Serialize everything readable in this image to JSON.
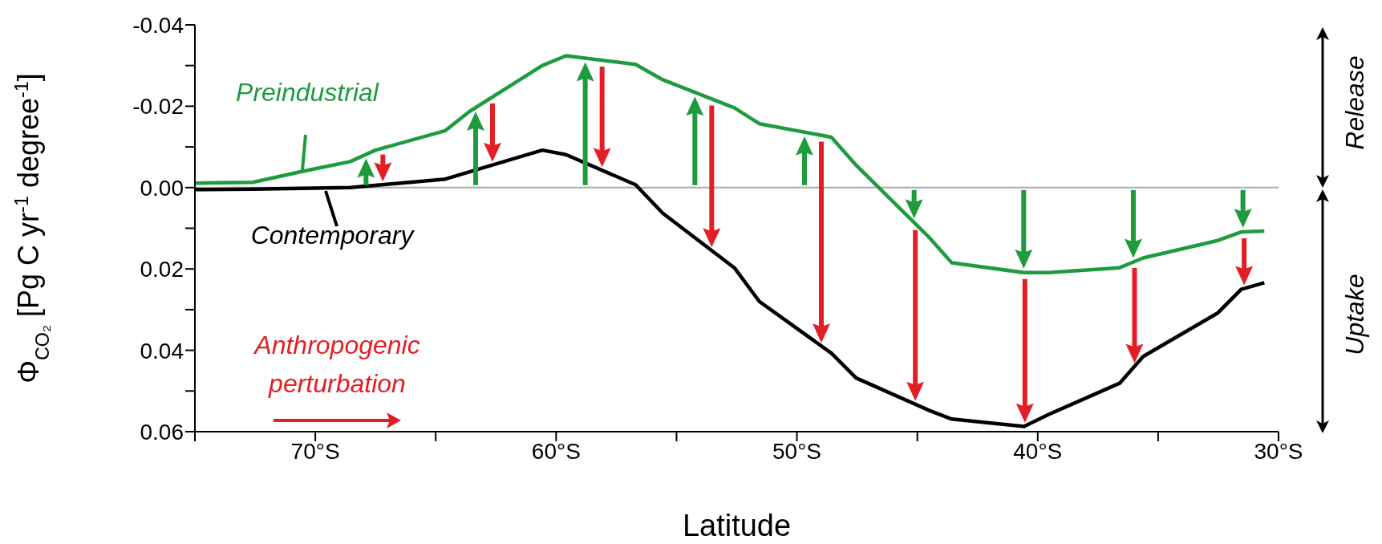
{
  "chart_data": {
    "type": "line",
    "xlabel": "Latitude",
    "ylabel": "Φ$_{CO₂}$ [Pg C yr$^{-1}$ degree$^{-1}$]",
    "xlim": [
      -75,
      -30
    ],
    "ylim": [
      0.06,
      -0.04
    ],
    "xticks": [
      {
        "value": -75,
        "label": null
      },
      {
        "value": -70,
        "label": "70°S"
      },
      {
        "value": -65,
        "label": null
      },
      {
        "value": -60,
        "label": "60°S"
      },
      {
        "value": -55,
        "label": null
      },
      {
        "value": -50,
        "label": "50°S"
      },
      {
        "value": -45,
        "label": null
      },
      {
        "value": -40,
        "label": "40°S"
      },
      {
        "value": -35,
        "label": null
      },
      {
        "value": -30,
        "label": "30°S"
      }
    ],
    "yticks": [
      {
        "value": -0.04,
        "label": "-0.04"
      },
      {
        "value": -0.03,
        "label": null
      },
      {
        "value": -0.02,
        "label": "-0.02"
      },
      {
        "value": -0.01,
        "label": null
      },
      {
        "value": 0,
        "label": "0.00"
      },
      {
        "value": 0.01,
        "label": null
      },
      {
        "value": 0.02,
        "label": "0.02"
      },
      {
        "value": 0.03,
        "label": null
      },
      {
        "value": 0.04,
        "label": "0.04"
      },
      {
        "value": 0.05,
        "label": null
      },
      {
        "value": 0.06,
        "label": "0.06"
      }
    ],
    "grid": false,
    "marker": "none",
    "line_style": "solid",
    "series": [
      {
        "name": "Preindustrial",
        "color": "#1e9b3c",
        "x": [
          -75,
          -72.6,
          -70.6,
          -68.55,
          -67.5,
          -64.6,
          -63.6,
          -60.57,
          -59.59,
          -56.7,
          -55.57,
          -52.6,
          -51.56,
          -48.57,
          -47.54,
          -44.5,
          -43.57,
          -40.57,
          -39.56,
          -36.6,
          -35.62,
          -32.52,
          -31.55,
          -30.59
        ],
        "values": [
          -0.0011,
          -0.0013,
          -0.0039,
          -0.0064,
          -0.0092,
          -0.014,
          -0.0187,
          -0.03,
          -0.0324,
          -0.0303,
          -0.0265,
          -0.0196,
          -0.0157,
          -0.0124,
          -0.0055,
          0.0123,
          0.0185,
          0.0209,
          0.0209,
          0.0197,
          0.0173,
          0.013,
          0.0109,
          0.0107
        ]
      },
      {
        "name": "Contemporary",
        "color": "#000000",
        "x": [
          -75,
          -72.6,
          -68.55,
          -64.6,
          -60.57,
          -59.59,
          -56.7,
          -55.57,
          -52.6,
          -51.56,
          -48.57,
          -47.54,
          -44.5,
          -43.57,
          -40.57,
          -39.56,
          -36.6,
          -35.62,
          -32.52,
          -31.55,
          -30.59
        ],
        "values": [
          0.0005,
          0.0004,
          0.0,
          -0.0021,
          -0.0092,
          -0.0081,
          -0.0007,
          0.0063,
          0.0197,
          0.028,
          0.0407,
          0.0468,
          0.0548,
          0.0569,
          0.0587,
          0.0558,
          0.0481,
          0.0415,
          0.0308,
          0.025,
          0.0234
        ]
      }
    ],
    "ref_lines": [
      {
        "axis": "y",
        "value": 0,
        "color": "#aaaaaa"
      }
    ],
    "annotations": [
      "Release",
      "Uptake",
      "Anthropogenic perturbation"
    ]
  }
}
